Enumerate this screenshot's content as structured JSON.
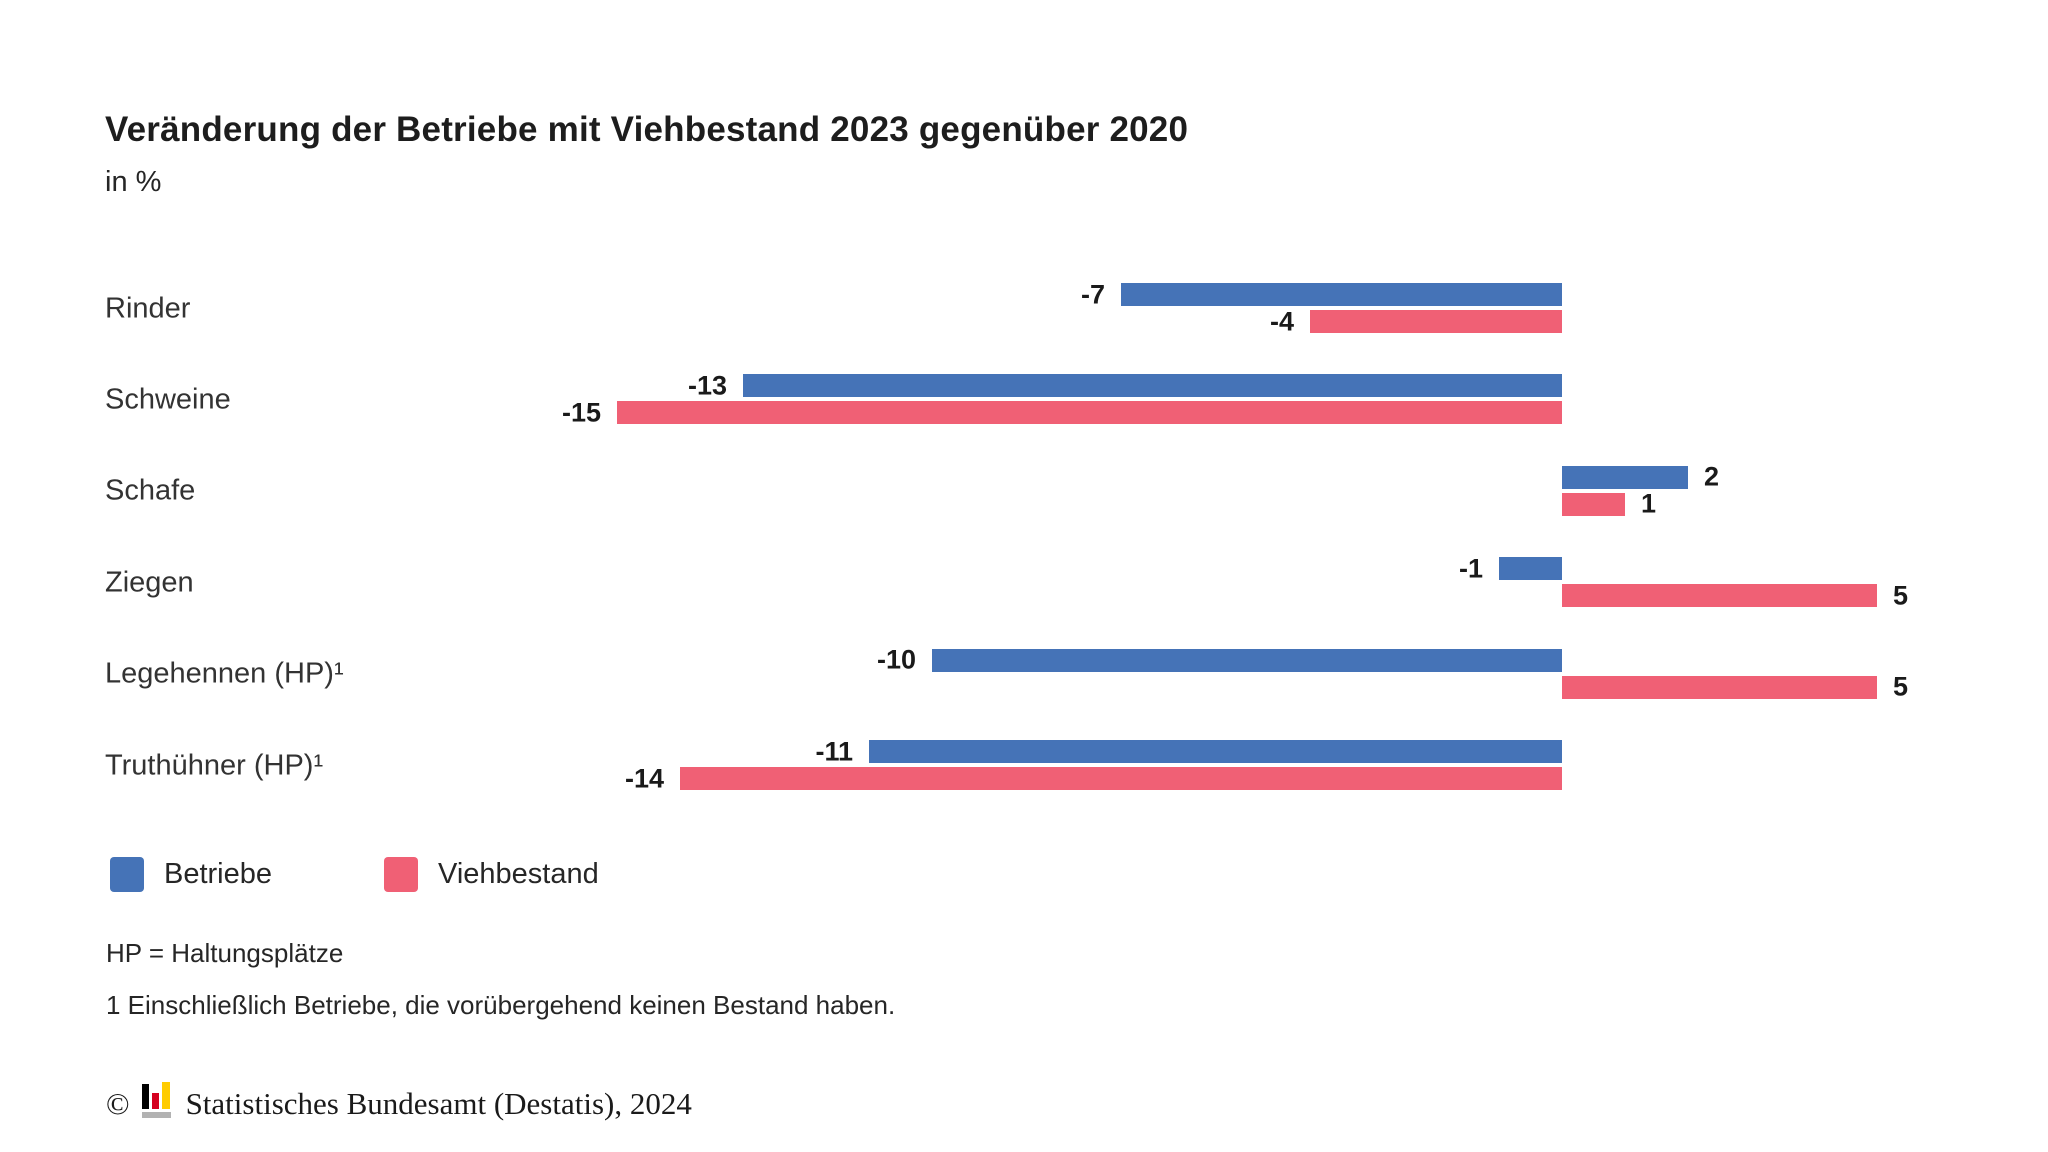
{
  "header": {
    "title": "Veränderung der Betriebe mit Viehbestand 2023 gegenüber 2020",
    "subtitle": "in %"
  },
  "chart_data": {
    "type": "bar",
    "orientation": "horizontal",
    "unit": "%",
    "title": "Veränderung der Betriebe mit Viehbestand 2023 gegenüber 2020",
    "subtitle": "in %",
    "categories": [
      "Rinder",
      "Schweine",
      "Schafe",
      "Ziegen",
      "Legehennen (HP)¹",
      "Truthühner (HP)¹"
    ],
    "series": [
      {
        "name": "Betriebe",
        "color": "#4573b7",
        "values": [
          -7,
          -13,
          2,
          -1,
          -10,
          -11
        ]
      },
      {
        "name": "Viehbestand",
        "color": "#f06075",
        "values": [
          -4,
          -15,
          1,
          5,
          5,
          -14
        ]
      }
    ],
    "value_labels": [
      "-7",
      "-4",
      "-13",
      "-15",
      "2",
      "1",
      "-1",
      "5",
      "-10",
      "5",
      "-11",
      "-14"
    ],
    "axes_hidden": true,
    "grid": false,
    "legend_position": "bottom"
  },
  "legend": {
    "items": [
      {
        "label": "Betriebe",
        "color": "#4573b7"
      },
      {
        "label": "Viehbestand",
        "color": "#f06075"
      }
    ]
  },
  "footnotes": [
    "HP = Haltungsplätze",
    "1 Einschließlich Betriebe, die vorübergehend keinen Bestand haben."
  ],
  "copyright": {
    "symbol": "©",
    "text": "Statistisches Bundesamt (Destatis), 2024",
    "logo_colors": {
      "black": "#000000",
      "red": "#d5001f",
      "yellow": "#ffcc00",
      "gray": "#b2b2b2"
    }
  }
}
